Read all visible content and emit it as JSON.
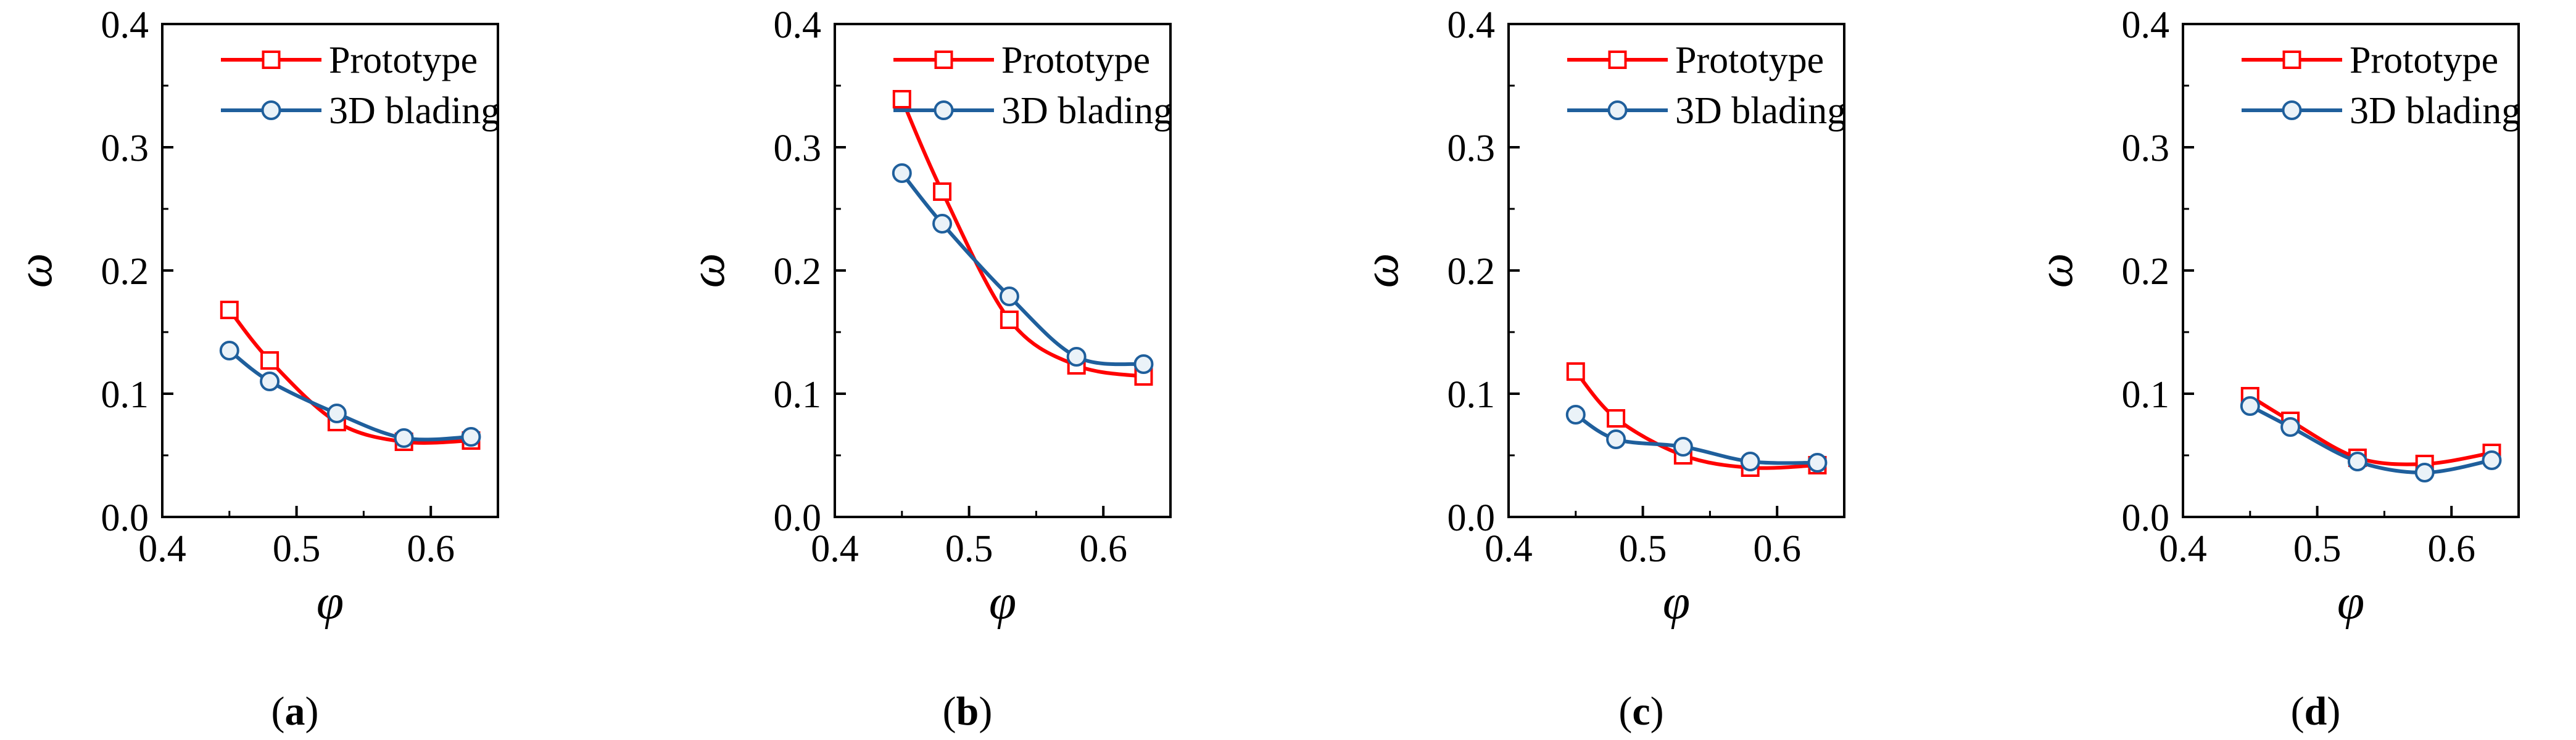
{
  "colors": {
    "prototype": "#ff0000",
    "blading": "#1f5f9c",
    "axis": "#000000",
    "marker_fill": "#ffffff",
    "blading_marker_fill": "#eaf2f8"
  },
  "chart_data": [
    {
      "type": "line",
      "panel": "a",
      "xlabel": "φ",
      "ylabel": "ω",
      "xlim": [
        0.4,
        0.65
      ],
      "ylim": [
        0.0,
        0.4
      ],
      "xticks": [
        0.4,
        0.5,
        0.6
      ],
      "xtick_labels": [
        "0.4",
        "0.5",
        "0.6"
      ],
      "yticks": [
        0.0,
        0.1,
        0.2,
        0.3,
        0.4
      ],
      "ytick_labels": [
        "0.0",
        "0.1",
        "0.2",
        "0.3",
        "0.4"
      ],
      "legend": "top-right",
      "x": [
        0.45,
        0.48,
        0.53,
        0.58,
        0.63
      ],
      "series": [
        {
          "name": "Prototype",
          "marker": "square",
          "values": [
            0.168,
            0.127,
            0.077,
            0.061,
            0.062
          ]
        },
        {
          "name": "3D blading",
          "marker": "circle",
          "values": [
            0.135,
            0.11,
            0.084,
            0.064,
            0.065
          ]
        }
      ],
      "caption": {
        "open": "(",
        "letter": "a",
        "close": ")"
      }
    },
    {
      "type": "line",
      "panel": "b",
      "xlabel": "φ",
      "ylabel": "ω",
      "xlim": [
        0.4,
        0.65
      ],
      "ylim": [
        0.0,
        0.4
      ],
      "xticks": [
        0.4,
        0.5,
        0.6
      ],
      "xtick_labels": [
        "0.4",
        "0.5",
        "0.6"
      ],
      "yticks": [
        0.0,
        0.1,
        0.2,
        0.3,
        0.4
      ],
      "ytick_labels": [
        "0.0",
        "0.1",
        "0.2",
        "0.3",
        "0.4"
      ],
      "legend": "top-right",
      "x": [
        0.45,
        0.48,
        0.53,
        0.58,
        0.63
      ],
      "series": [
        {
          "name": "Prototype",
          "marker": "square",
          "values": [
            0.339,
            0.264,
            0.16,
            0.123,
            0.114
          ]
        },
        {
          "name": "3D blading",
          "marker": "circle",
          "values": [
            0.279,
            0.238,
            0.179,
            0.13,
            0.124
          ]
        }
      ],
      "caption": {
        "open": "(",
        "letter": "b",
        "close": ")"
      }
    },
    {
      "type": "line",
      "panel": "c",
      "xlabel": "φ",
      "ylabel": "ω",
      "xlim": [
        0.4,
        0.65
      ],
      "ylim": [
        0.0,
        0.4
      ],
      "xticks": [
        0.4,
        0.5,
        0.6
      ],
      "xtick_labels": [
        "0.4",
        "0.5",
        "0.6"
      ],
      "yticks": [
        0.0,
        0.1,
        0.2,
        0.3,
        0.4
      ],
      "ytick_labels": [
        "0.0",
        "0.1",
        "0.2",
        "0.3",
        "0.4"
      ],
      "legend": "top-right",
      "x": [
        0.45,
        0.48,
        0.53,
        0.58,
        0.63
      ],
      "series": [
        {
          "name": "Prototype",
          "marker": "square",
          "values": [
            0.118,
            0.08,
            0.05,
            0.04,
            0.042
          ]
        },
        {
          "name": "3D blading",
          "marker": "circle",
          "values": [
            0.083,
            0.063,
            0.057,
            0.045,
            0.044
          ]
        }
      ],
      "caption": {
        "open": "(",
        "letter": "c",
        "close": ")"
      }
    },
    {
      "type": "line",
      "panel": "d",
      "xlabel": "φ",
      "ylabel": "ω",
      "xlim": [
        0.4,
        0.65
      ],
      "ylim": [
        0.0,
        0.4
      ],
      "xticks": [
        0.4,
        0.5,
        0.6
      ],
      "xtick_labels": [
        "0.4",
        "0.5",
        "0.6"
      ],
      "yticks": [
        0.0,
        0.1,
        0.2,
        0.3,
        0.4
      ],
      "ytick_labels": [
        "0.0",
        "0.1",
        "0.2",
        "0.3",
        "0.4"
      ],
      "legend": "top-right",
      "x": [
        0.45,
        0.48,
        0.53,
        0.58,
        0.63
      ],
      "series": [
        {
          "name": "Prototype",
          "marker": "square",
          "values": [
            0.098,
            0.078,
            0.048,
            0.043,
            0.052
          ]
        },
        {
          "name": "3D blading",
          "marker": "circle",
          "values": [
            0.09,
            0.073,
            0.045,
            0.036,
            0.046
          ]
        }
      ],
      "caption": {
        "open": "(",
        "letter": "d",
        "close": ")"
      }
    }
  ]
}
